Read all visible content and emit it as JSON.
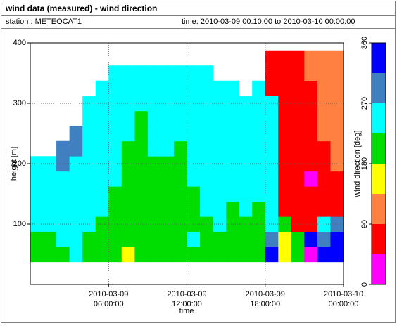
{
  "chart_data": {
    "type": "heatmap",
    "title": "wind data (measured) - wind direction",
    "station": "station : METEOCAT1",
    "time_range": "time: 2010-03-09 00:10:00 to 2010-03-10 00:00:00",
    "xlabel": "time",
    "ylabel": "height [m]",
    "xlim": [
      0,
      24
    ],
    "xticks": [
      {
        "value": 6,
        "label": "2010-03-09 06:00:00"
      },
      {
        "value": 12,
        "label": "2010-03-09 12:00:00"
      },
      {
        "value": 18,
        "label": "2010-03-09 18:00:00"
      },
      {
        "value": 24,
        "label": "2010-03-10 00:00:00"
      }
    ],
    "ylim": [
      0,
      400
    ],
    "yticks": [
      100,
      200,
      300,
      400
    ],
    "grid": true,
    "x": [
      0.5,
      1.5,
      2.5,
      3.5,
      4.5,
      5.5,
      6.5,
      7.5,
      8.5,
      9.5,
      10.5,
      11.5,
      12.5,
      13.5,
      14.5,
      15.5,
      16.5,
      17.5,
      18.5,
      19.5,
      20.5,
      21.5,
      22.5,
      23.5
    ],
    "y": [
      50,
      75,
      100,
      125,
      150,
      175,
      200,
      225,
      250,
      275,
      300,
      325,
      350,
      375
    ],
    "values": [
      [
        200,
        200,
        200,
        240,
        200,
        200,
        200,
        160,
        200,
        200,
        200,
        200,
        200,
        200,
        200,
        200,
        200,
        200,
        330,
        160,
        200,
        20,
        330,
        330
      ],
      [
        200,
        200,
        240,
        240,
        200,
        200,
        200,
        200,
        200,
        200,
        200,
        200,
        240,
        200,
        200,
        200,
        200,
        200,
        290,
        160,
        200,
        330,
        290,
        330
      ],
      [
        240,
        240,
        240,
        240,
        240,
        200,
        200,
        200,
        200,
        200,
        200,
        200,
        200,
        200,
        240,
        200,
        200,
        200,
        240,
        200,
        70,
        70,
        240,
        290
      ],
      [
        240,
        240,
        240,
        240,
        240,
        240,
        200,
        200,
        200,
        200,
        200,
        200,
        200,
        240,
        240,
        200,
        240,
        200,
        240,
        70,
        70,
        70,
        70,
        70
      ],
      [
        240,
        240,
        240,
        240,
        240,
        240,
        200,
        200,
        200,
        200,
        200,
        200,
        200,
        240,
        240,
        240,
        240,
        240,
        240,
        70,
        70,
        70,
        70,
        70
      ],
      [
        240,
        240,
        240,
        240,
        240,
        240,
        240,
        200,
        200,
        200,
        200,
        200,
        240,
        240,
        240,
        240,
        240,
        240,
        240,
        70,
        70,
        20,
        70,
        70
      ],
      [
        240,
        240,
        290,
        240,
        240,
        240,
        240,
        200,
        200,
        200,
        200,
        200,
        240,
        240,
        240,
        240,
        240,
        240,
        240,
        70,
        70,
        70,
        70,
        110
      ],
      [
        null,
        null,
        290,
        290,
        240,
        240,
        240,
        200,
        200,
        240,
        240,
        200,
        240,
        240,
        240,
        240,
        240,
        240,
        240,
        70,
        70,
        70,
        70,
        110
      ],
      [
        null,
        null,
        null,
        290,
        240,
        240,
        240,
        240,
        200,
        240,
        240,
        240,
        240,
        240,
        240,
        240,
        240,
        240,
        240,
        70,
        70,
        70,
        110,
        110
      ],
      [
        null,
        null,
        null,
        null,
        240,
        240,
        240,
        240,
        200,
        240,
        240,
        240,
        240,
        240,
        240,
        240,
        240,
        240,
        240,
        70,
        70,
        70,
        110,
        110
      ],
      [
        null,
        null,
        null,
        null,
        240,
        240,
        240,
        240,
        240,
        240,
        240,
        240,
        240,
        240,
        240,
        240,
        240,
        240,
        240,
        70,
        70,
        70,
        110,
        110
      ],
      [
        null,
        null,
        null,
        null,
        null,
        240,
        240,
        240,
        240,
        240,
        240,
        240,
        240,
        240,
        240,
        240,
        null,
        240,
        70,
        70,
        70,
        70,
        110,
        110
      ],
      [
        null,
        null,
        null,
        null,
        null,
        null,
        240,
        240,
        240,
        240,
        240,
        240,
        240,
        240,
        null,
        null,
        null,
        null,
        70,
        70,
        70,
        110,
        110,
        110
      ],
      [
        null,
        null,
        null,
        null,
        null,
        null,
        null,
        null,
        null,
        null,
        null,
        null,
        null,
        null,
        null,
        null,
        null,
        null,
        70,
        70,
        70,
        110,
        110,
        110
      ]
    ],
    "colorbar": {
      "label": "wind direction [deg]",
      "lim": [
        0,
        360
      ],
      "ticks": [
        0,
        90,
        180,
        270,
        360
      ],
      "colors": [
        "#ff00ff",
        "#ff0000",
        "#ff8040",
        "#ffff00",
        "#00dd00",
        "#00ffff",
        "#4080c0",
        "#0000ff"
      ]
    }
  }
}
